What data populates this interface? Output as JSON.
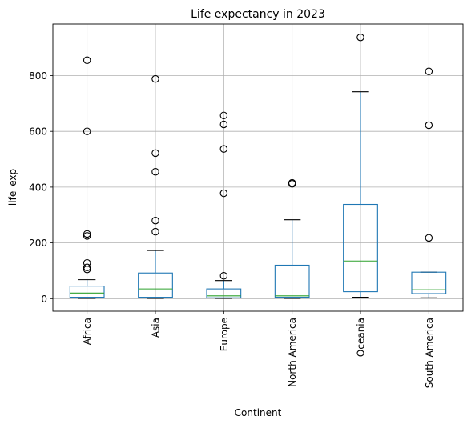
{
  "chart_data": {
    "type": "box",
    "title": "Life expectancy in 2023",
    "xlabel": "Continent",
    "ylabel": "life_exp",
    "ylim": [
      -45,
      985
    ],
    "yticks": [
      0,
      200,
      400,
      600,
      800
    ],
    "grid": true,
    "colors": {
      "box": "#1f77b4",
      "median": "#2ca02c",
      "cap": "#000000",
      "flier": "#000000",
      "grid": "#b0b0b0"
    },
    "categories": [
      "Africa",
      "Asia",
      "Europe",
      "North America",
      "Oceania",
      "South America"
    ],
    "boxes": [
      {
        "q1": 5,
        "median": 20,
        "q3": 45,
        "whisker_low": 1,
        "whisker_high": 68,
        "fliers": [
          105,
          112,
          128,
          225,
          232,
          600,
          855
        ]
      },
      {
        "q1": 5,
        "median": 35,
        "q3": 92,
        "whisker_low": 1,
        "whisker_high": 173,
        "fliers": [
          240,
          280,
          455,
          522,
          788
        ]
      },
      {
        "q1": 3,
        "median": 10,
        "q3": 35,
        "whisker_low": 1,
        "whisker_high": 65,
        "fliers": [
          82,
          378,
          537,
          625,
          657
        ]
      },
      {
        "q1": 5,
        "median": 10,
        "q3": 120,
        "whisker_low": 1,
        "whisker_high": 283,
        "fliers": [
          412,
          415
        ]
      },
      {
        "q1": 25,
        "median": 135,
        "q3": 338,
        "whisker_low": 5,
        "whisker_high": 742,
        "fliers": [
          937
        ]
      },
      {
        "q1": 18,
        "median": 32,
        "q3": 95,
        "whisker_low": 3,
        "whisker_high": 95,
        "fliers": [
          218,
          622,
          815
        ]
      }
    ]
  }
}
